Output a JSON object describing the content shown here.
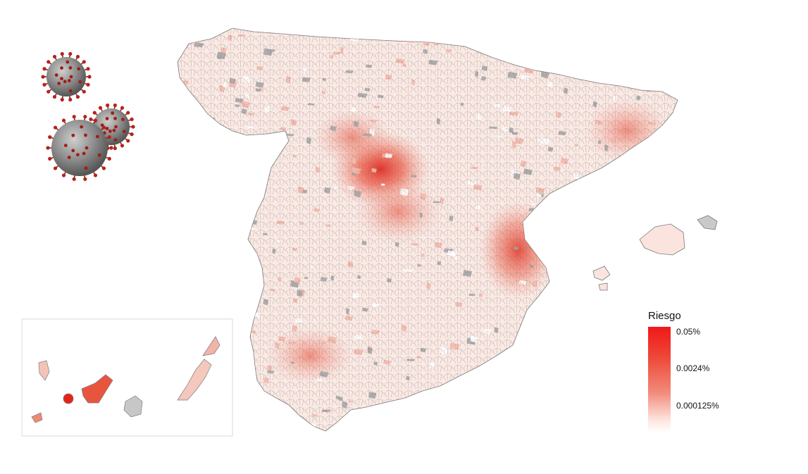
{
  "legend": {
    "title": "Riesgo",
    "labels": [
      "0.05%",
      "0.0024%",
      "0.000125%"
    ],
    "colors": {
      "high": "#f01818",
      "mid": "#ee4a3a",
      "low": "#fde4de",
      "none": "#ffffff",
      "no_data": "#a6a6a6"
    }
  },
  "map": {
    "region": "Spain",
    "insets": [
      "Canary Islands"
    ],
    "icons": [
      "coronavirus-icon",
      "coronavirus-icon",
      "coronavirus-icon"
    ]
  }
}
